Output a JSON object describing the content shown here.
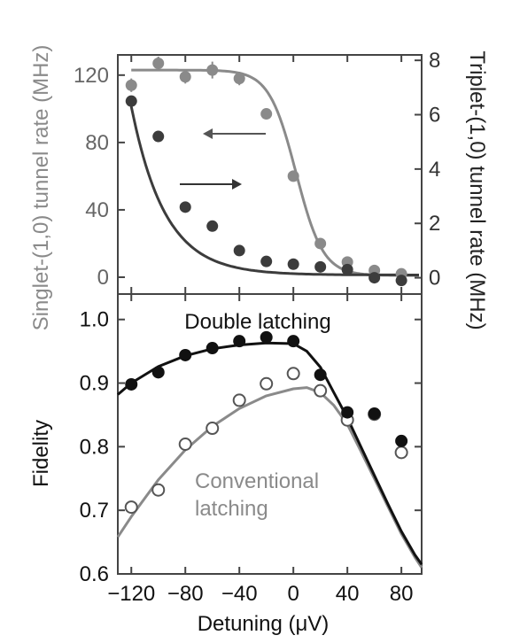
{
  "chart_data": [
    {
      "type": "line",
      "panel": "top",
      "xlabel": "",
      "ylabel_left": "Singlet-(1,0) tunnel rate (MHz)",
      "ylabel_right": "Triplet-(1,0) tunnel rate (MHz)",
      "xlim": [
        -130,
        95
      ],
      "ylim_left": [
        -10,
        132
      ],
      "ylim_right": [
        -0.6,
        8.2
      ],
      "yticks_left": [
        0,
        40,
        80,
        120
      ],
      "yticks_right": [
        0,
        2,
        4,
        6,
        8
      ],
      "colors": {
        "singlet": "#8a8a8a",
        "triplet": "#3c3c3c",
        "arrow": "#555555"
      },
      "series": [
        {
          "name": "Singlet-(1,0) tunnel rate (MHz)",
          "axis": "left",
          "points": [
            [
              -120,
              114
            ],
            [
              -100,
              127
            ],
            [
              -80,
              119
            ],
            [
              -60,
              123
            ],
            [
              -40,
              118
            ],
            [
              -20,
              97
            ],
            [
              0,
              60
            ],
            [
              20,
              20
            ],
            [
              40,
              9
            ],
            [
              60,
              4
            ],
            [
              80,
              2
            ]
          ],
          "errors": [
            4,
            4,
            4,
            5,
            4,
            0,
            0,
            0,
            0,
            0,
            0
          ],
          "fit": {
            "model": "logistic",
            "low": 1,
            "high": 123,
            "center": 2,
            "width": 10
          }
        },
        {
          "name": "Triplet-(1,0) tunnel rate (MHz)",
          "axis": "right",
          "points": [
            [
              -120,
              6.5
            ],
            [
              -100,
              5.2
            ],
            [
              -80,
              2.6
            ],
            [
              -60,
              1.9
            ],
            [
              -40,
              1.0
            ],
            [
              -20,
              0.6
            ],
            [
              0,
              0.5
            ],
            [
              20,
              0.4
            ],
            [
              40,
              0.3
            ],
            [
              60,
              0.0
            ],
            [
              80,
              -0.1
            ]
          ],
          "fit": {
            "model": "exponential",
            "offset": 0.1,
            "amplitude": 6.2,
            "x0": -120,
            "decay": 25
          }
        }
      ],
      "annotations": [
        "arrow-left",
        "arrow-right"
      ]
    },
    {
      "type": "scatter",
      "panel": "bottom",
      "xlabel": "Detuning (μV)",
      "ylabel": "Fidelity",
      "xlim": [
        -130,
        95
      ],
      "ylim": [
        0.6,
        1.04
      ],
      "xticks": [
        -120,
        -80,
        -40,
        0,
        40,
        80
      ],
      "xtick_labels": [
        "−120",
        "−80",
        "−40",
        "0",
        "40",
        "80"
      ],
      "yticks": [
        0.6,
        0.7,
        0.8,
        0.9,
        1.0
      ],
      "ytick_labels": [
        "0.6",
        "0.7",
        "0.8",
        "0.9",
        "1.0"
      ],
      "colors": {
        "double": "#111111",
        "conventional": "#8a8a8a"
      },
      "series": [
        {
          "name": "Double latching",
          "marker": "filled",
          "points": [
            [
              -120,
              0.898
            ],
            [
              -100,
              0.917
            ],
            [
              -80,
              0.944
            ],
            [
              -60,
              0.955
            ],
            [
              -40,
              0.966
            ],
            [
              -20,
              0.972
            ],
            [
              0,
              0.966
            ],
            [
              20,
              0.913
            ],
            [
              40,
              0.854
            ],
            [
              60,
              0.852
            ],
            [
              80,
              0.809
            ]
          ],
          "fit": [
            [
              -130,
              0.882
            ],
            [
              -120,
              0.9
            ],
            [
              -100,
              0.926
            ],
            [
              -80,
              0.943
            ],
            [
              -60,
              0.954
            ],
            [
              -40,
              0.96
            ],
            [
              -20,
              0.963
            ],
            [
              0,
              0.962
            ],
            [
              10,
              0.95
            ],
            [
              20,
              0.925
            ],
            [
              30,
              0.885
            ],
            [
              40,
              0.845
            ],
            [
              50,
              0.8
            ],
            [
              60,
              0.755
            ],
            [
              70,
              0.71
            ],
            [
              80,
              0.667
            ],
            [
              90,
              0.63
            ],
            [
              95,
              0.615
            ]
          ]
        },
        {
          "name": "Conventional latching",
          "marker": "open",
          "points": [
            [
              -120,
              0.705
            ],
            [
              -100,
              0.732
            ],
            [
              -80,
              0.804
            ],
            [
              -60,
              0.829
            ],
            [
              -40,
              0.873
            ],
            [
              -20,
              0.899
            ],
            [
              0,
              0.915
            ],
            [
              20,
              0.888
            ],
            [
              40,
              0.842
            ],
            [
              60,
              0.851
            ],
            [
              80,
              0.791
            ]
          ],
          "fit": [
            [
              -130,
              0.658
            ],
            [
              -120,
              0.69
            ],
            [
              -100,
              0.748
            ],
            [
              -80,
              0.795
            ],
            [
              -60,
              0.832
            ],
            [
              -40,
              0.86
            ],
            [
              -20,
              0.88
            ],
            [
              0,
              0.891
            ],
            [
              10,
              0.893
            ],
            [
              20,
              0.885
            ],
            [
              30,
              0.865
            ],
            [
              40,
              0.835
            ],
            [
              50,
              0.793
            ],
            [
              60,
              0.75
            ],
            [
              70,
              0.706
            ],
            [
              80,
              0.663
            ],
            [
              90,
              0.626
            ],
            [
              95,
              0.61
            ]
          ]
        }
      ],
      "text_labels": {
        "double": "Double latching",
        "conventional_line1": "Conventional",
        "conventional_line2": "latching"
      }
    }
  ]
}
